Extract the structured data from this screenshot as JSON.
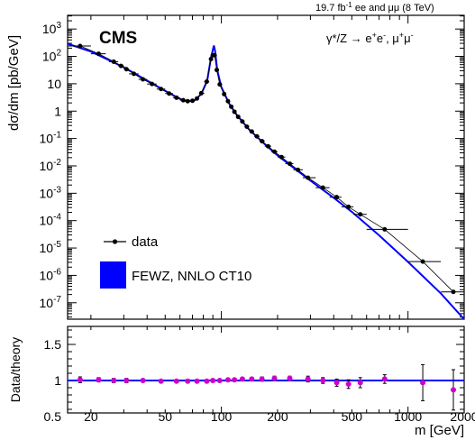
{
  "header": {
    "lumi_value": "19.7 fb",
    "lumi_exp": "-1",
    "lumi_tail": " ee and μμ (8 TeV)"
  },
  "labels": {
    "cms": "CMS",
    "process_main": "γ*/Z → e",
    "process_e_plus": "+",
    "process_e": "e",
    "process_e_minus": "-",
    "process_mu": ", μ",
    "process_mu_plus": "+",
    "process_mu2": "μ",
    "process_mu_minus": "-"
  },
  "chart_data": [
    {
      "type": "line",
      "name": "top-panel",
      "ylabel": "dσ/dm [pb/GeV]",
      "xscale": "log",
      "yscale": "log",
      "xlim": [
        15,
        2000
      ],
      "ylim_exp": [
        -7.6,
        3.5
      ],
      "y_tick_labels": [
        {
          "base": "10",
          "exp": "3"
        },
        {
          "base": "10",
          "exp": "2"
        },
        {
          "base": "10",
          "exp": ""
        },
        {
          "base": "1",
          "exp": ""
        },
        {
          "base": "10",
          "exp": "-1"
        },
        {
          "base": "10",
          "exp": "-2"
        },
        {
          "base": "10",
          "exp": "-3"
        },
        {
          "base": "10",
          "exp": "-4"
        },
        {
          "base": "10",
          "exp": "-5"
        },
        {
          "base": "10",
          "exp": "-6"
        },
        {
          "base": "10",
          "exp": "-7"
        }
      ],
      "legend": [
        {
          "label": "data",
          "style": "marker",
          "color": "#000000"
        },
        {
          "label": "FEWZ, NNLO CT10",
          "style": "box",
          "color": "#0000ff"
        }
      ],
      "series": [
        {
          "name": "data",
          "color": "#000000",
          "points": [
            [
              17.5,
              240,
              15,
              20
            ],
            [
              22,
              125,
              20,
              24
            ],
            [
              26.5,
              64,
              25,
              28
            ],
            [
              29,
              45,
              28,
              30
            ],
            [
              31,
              34,
              30,
              32
            ],
            [
              34,
              23,
              32,
              36
            ],
            [
              38,
              14.5,
              36,
              40
            ],
            [
              42.5,
              9.8,
              40,
              45
            ],
            [
              47.5,
              6.4,
              45,
              50
            ],
            [
              52.5,
              4.4,
              50,
              55
            ],
            [
              57.5,
              3.1,
              55,
              60
            ],
            [
              62.5,
              2.5,
              60,
              64
            ],
            [
              66,
              2.3,
              64,
              68
            ],
            [
              70,
              2.4,
              68,
              72
            ],
            [
              74,
              2.9,
              72,
              76
            ],
            [
              78,
              4.5,
              76,
              81
            ],
            [
              83.5,
              12,
              81,
              86
            ],
            [
              88,
              80,
              86,
              89
            ],
            [
              90,
              110,
              89,
              91
            ],
            [
              92,
              110,
              91,
              93
            ],
            [
              94.5,
              32,
              93,
              96
            ],
            [
              98,
              9.5,
              96,
              101
            ],
            [
              103.5,
              4.2,
              101,
              106
            ],
            [
              108.5,
              2.3,
              106,
              110
            ],
            [
              113,
              1.45,
              110,
              115
            ],
            [
              117.5,
              0.95,
              115,
              120
            ],
            [
              123,
              0.62,
              120,
              126
            ],
            [
              129.5,
              0.42,
              126,
              133
            ],
            [
              137,
              0.27,
              133,
              141
            ],
            [
              145.5,
              0.18,
              141,
              150
            ],
            [
              155,
              0.12,
              150,
              160
            ],
            [
              165,
              0.08,
              160,
              171
            ],
            [
              178,
              0.052,
              171,
              185
            ],
            [
              192.5,
              0.033,
              185,
              200
            ],
            [
              210,
              0.021,
              200,
              220
            ],
            [
              232.5,
              0.012,
              220,
              243
            ],
            [
              257,
              0.0072,
              243,
              273
            ],
            [
              291,
              0.0037,
              273,
              320
            ],
            [
              350,
              0.0016,
              320,
              380
            ],
            [
              415,
              0.00072,
              380,
              440
            ],
            [
              480,
              0.00032,
              440,
              510
            ],
            [
              555,
              0.00017,
              510,
              600
            ],
            [
              750,
              4.8e-05,
              600,
              1000
            ],
            [
              1200,
              3.2e-06,
              1000,
              1500
            ],
            [
              1750,
              2.5e-07,
              1500,
              2000
            ]
          ]
        },
        {
          "name": "FEWZ, NNLO CT10",
          "color": "#0000ff",
          "points": [
            [
              15,
              290
            ],
            [
              20,
              150
            ],
            [
              30,
              40
            ],
            [
              40,
              13
            ],
            [
              50,
              5.5
            ],
            [
              60,
              2.8
            ],
            [
              66,
              2.3
            ],
            [
              72,
              2.5
            ],
            [
              78,
              4.2
            ],
            [
              84,
              13
            ],
            [
              88,
              90
            ],
            [
              90,
              170
            ],
            [
              91.2,
              250
            ],
            [
              92.5,
              160
            ],
            [
              95,
              32
            ],
            [
              100,
              7.5
            ],
            [
              110,
              1.9
            ],
            [
              120,
              0.78
            ],
            [
              140,
              0.22
            ],
            [
              170,
              0.064
            ],
            [
              200,
              0.024
            ],
            [
              250,
              0.0075
            ],
            [
              300,
              0.0029
            ],
            [
              400,
              0.00068
            ],
            [
              500,
              0.00021
            ],
            [
              700,
              2.9e-05
            ],
            [
              1000,
              3.1e-06
            ],
            [
              1500,
              2.2e-07
            ],
            [
              2000,
              2.5e-08
            ]
          ]
        }
      ]
    },
    {
      "type": "scatter",
      "name": "ratio-panel",
      "ylabel": "Data/theory",
      "xlabel": "m [GeV]",
      "xscale": "log",
      "xlim": [
        15,
        2000
      ],
      "ylim": [
        0.55,
        1.75
      ],
      "y_tick_labels": [
        "0.5",
        "1",
        "1.5"
      ],
      "x_tick_labels": [
        "20",
        "50",
        "100",
        "200",
        "500",
        "1000",
        "2000"
      ],
      "reference_line": 1.0,
      "series": [
        {
          "name": "data/theory",
          "color": "#cc00cc",
          "points": [
            [
              17.5,
              1.01,
              0.04
            ],
            [
              22,
              1.01,
              0.03
            ],
            [
              26.5,
              1.0,
              0.03
            ],
            [
              31,
              1.0,
              0.03
            ],
            [
              38,
              1.0,
              0.02
            ],
            [
              47.5,
              0.99,
              0.02
            ],
            [
              57.5,
              0.99,
              0.02
            ],
            [
              66,
              0.99,
              0.02
            ],
            [
              74,
              0.99,
              0.02
            ],
            [
              83.5,
              0.99,
              0.02
            ],
            [
              90,
              1.0,
              0.02
            ],
            [
              98,
              1.0,
              0.02
            ],
            [
              108.5,
              1.01,
              0.02
            ],
            [
              117.5,
              1.01,
              0.02
            ],
            [
              129.5,
              1.02,
              0.02
            ],
            [
              145.5,
              1.02,
              0.02
            ],
            [
              165,
              1.02,
              0.03
            ],
            [
              192.5,
              1.03,
              0.03
            ],
            [
              232.5,
              1.03,
              0.03
            ],
            [
              291,
              1.02,
              0.04
            ],
            [
              350,
              1.0,
              0.04
            ],
            [
              415,
              0.97,
              0.05
            ],
            [
              480,
              0.95,
              0.06
            ],
            [
              555,
              0.97,
              0.07
            ],
            [
              750,
              1.02,
              0.06
            ],
            [
              1200,
              0.97,
              0.25
            ],
            [
              1750,
              0.87,
              0.28
            ]
          ]
        }
      ]
    }
  ]
}
